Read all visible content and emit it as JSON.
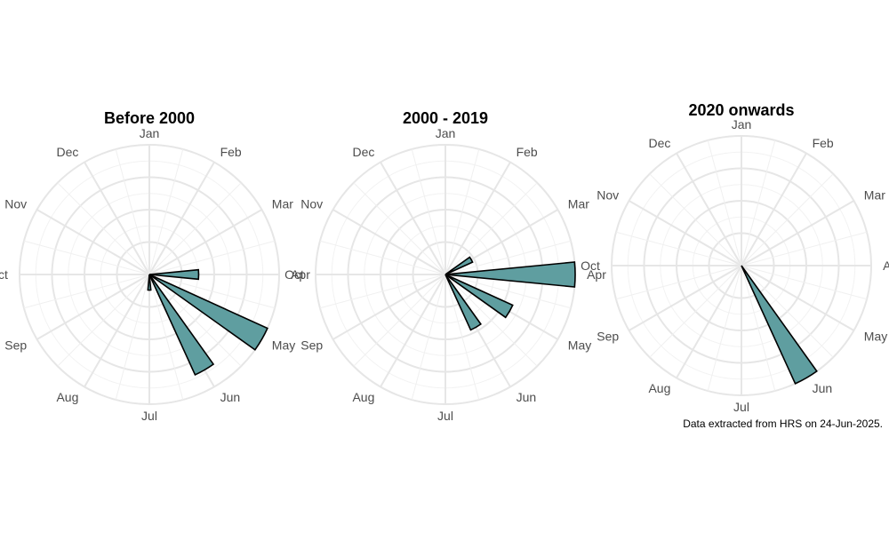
{
  "caption": "Data extracted from HRS on 24-Jun-2025.",
  "colors": {
    "bar_fill": "#5f9ea0",
    "bar_stroke": "#000000",
    "grid": "#e6e6e6",
    "label": "#4d4d4d"
  },
  "chart_data": [
    {
      "type": "bar",
      "coord": "polar",
      "title": "Before 2000",
      "categories": [
        "Jan",
        "Feb",
        "Mar",
        "Apr",
        "May",
        "Jun",
        "Jul",
        "Aug",
        "Sep",
        "Oct",
        "Nov",
        "Dec"
      ],
      "values": [
        0,
        0,
        0,
        0.38,
        1.0,
        0.85,
        0.12,
        0,
        0,
        0,
        0,
        0
      ],
      "ylim": [
        0,
        1
      ],
      "grid": true
    },
    {
      "type": "bar",
      "coord": "polar",
      "title": "2000 - 2019",
      "categories": [
        "Jan",
        "Feb",
        "Mar",
        "Apr",
        "May",
        "Jun",
        "Jul",
        "Aug",
        "Sep",
        "Oct",
        "Nov",
        "Dec"
      ],
      "values": [
        0,
        0,
        0.23,
        1.0,
        0.57,
        0.47,
        0,
        0,
        0,
        0,
        0,
        0
      ],
      "ylim": [
        0,
        1
      ],
      "grid": true
    },
    {
      "type": "bar",
      "coord": "polar",
      "title": "2020 onwards",
      "categories": [
        "Jan",
        "Feb",
        "Mar",
        "Apr",
        "May",
        "Jun",
        "Jul",
        "Aug",
        "Sep",
        "Oct",
        "Nov",
        "Dec"
      ],
      "values": [
        0,
        0,
        0,
        0,
        0,
        1.0,
        0,
        0,
        0,
        0,
        0,
        0
      ],
      "ylim": [
        0,
        1
      ],
      "grid": true
    }
  ]
}
